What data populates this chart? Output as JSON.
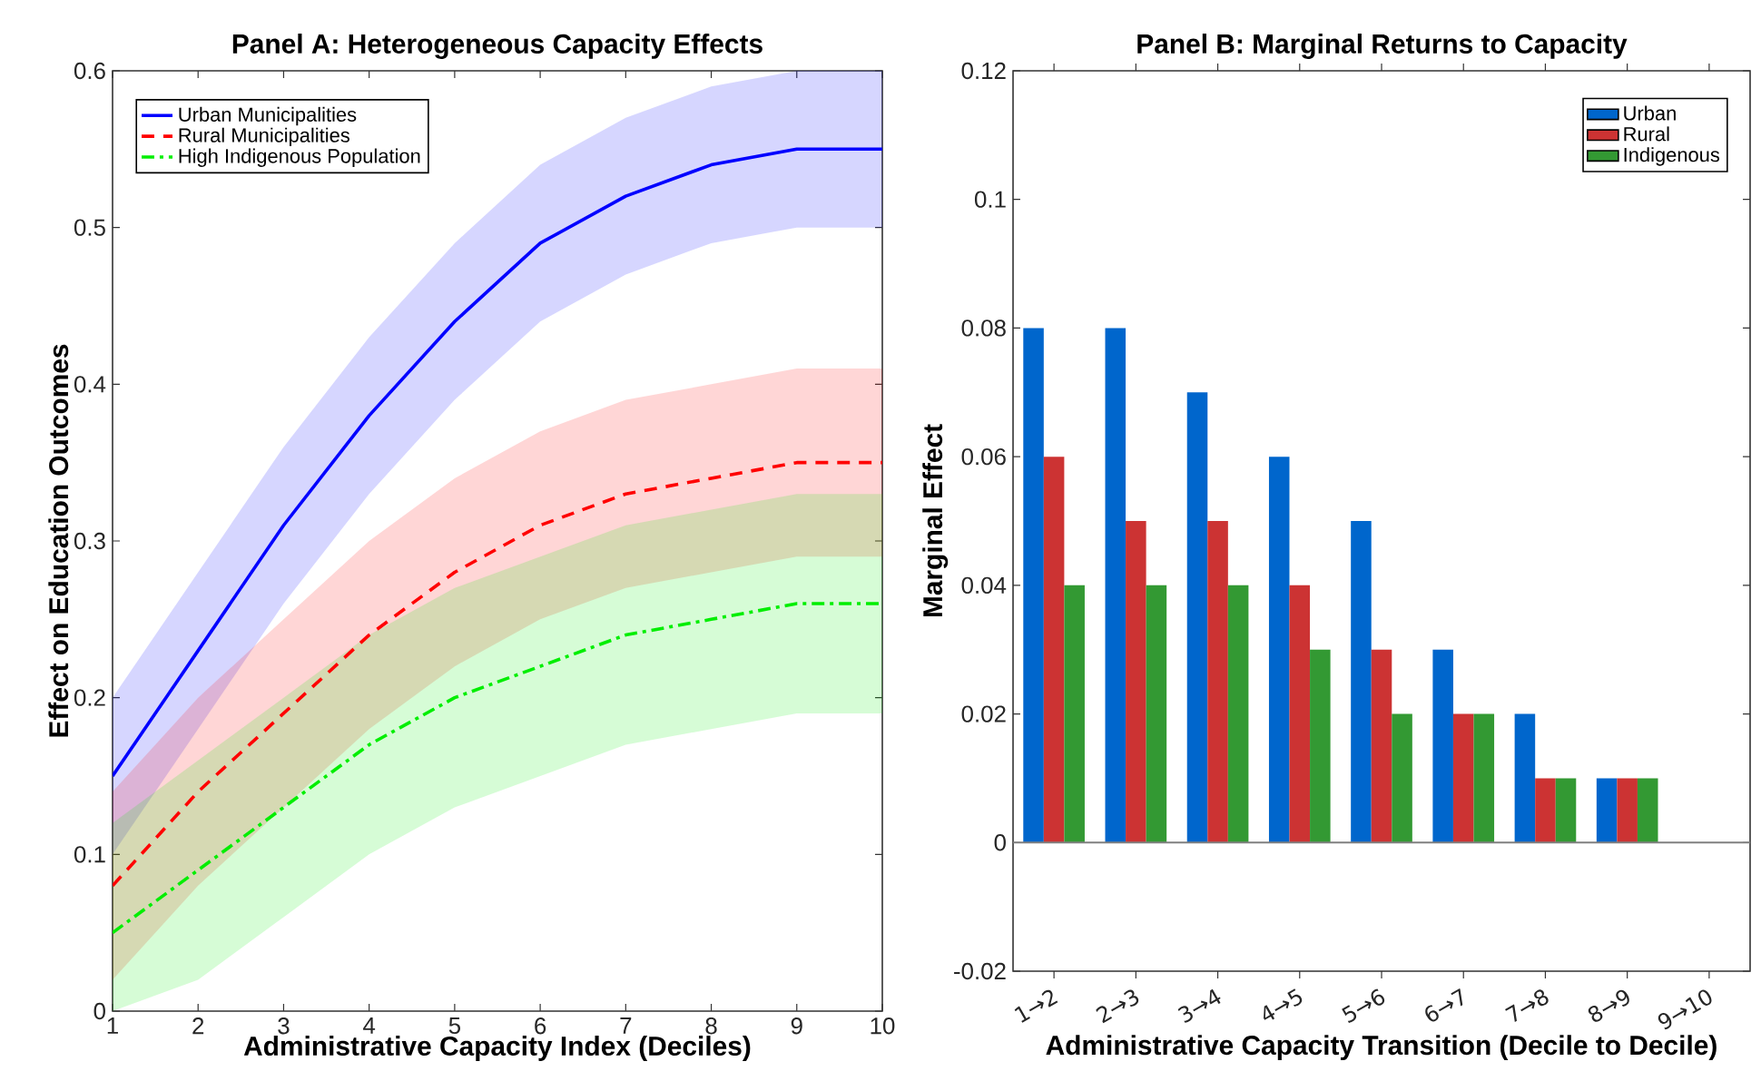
{
  "chart_data": [
    {
      "type": "line",
      "title": "Panel A: Heterogeneous Capacity Effects",
      "xlabel": "Administrative Capacity Index (Deciles)",
      "ylabel": "Effect on Education Outcomes",
      "x": [
        1,
        2,
        3,
        4,
        5,
        6,
        7,
        8,
        9,
        10
      ],
      "series": [
        {
          "name": "Urban Municipalities",
          "color": "#0000ff",
          "line_style": "solid",
          "values": [
            0.15,
            0.23,
            0.31,
            0.38,
            0.44,
            0.49,
            0.52,
            0.54,
            0.55,
            0.55
          ],
          "lower": [
            0.1,
            0.18,
            0.26,
            0.33,
            0.39,
            0.44,
            0.47,
            0.49,
            0.5,
            0.5
          ],
          "upper": [
            0.2,
            0.28,
            0.36,
            0.43,
            0.49,
            0.54,
            0.57,
            0.59,
            0.6,
            0.6
          ]
        },
        {
          "name": "Rural Municipalities",
          "color": "#ff0000",
          "line_style": "dashed",
          "values": [
            0.08,
            0.14,
            0.19,
            0.24,
            0.28,
            0.31,
            0.33,
            0.34,
            0.35,
            0.35
          ],
          "lower": [
            0.02,
            0.08,
            0.13,
            0.18,
            0.22,
            0.25,
            0.27,
            0.28,
            0.29,
            0.29
          ],
          "upper": [
            0.14,
            0.2,
            0.25,
            0.3,
            0.34,
            0.37,
            0.39,
            0.4,
            0.41,
            0.41
          ]
        },
        {
          "name": "High Indigenous Population",
          "color": "#00ee00",
          "line_style": "dashdot",
          "values": [
            0.05,
            0.09,
            0.13,
            0.17,
            0.2,
            0.22,
            0.24,
            0.25,
            0.26,
            0.26
          ],
          "lower": [
            0.0,
            0.02,
            0.06,
            0.1,
            0.13,
            0.15,
            0.17,
            0.18,
            0.19,
            0.19
          ],
          "upper": [
            0.12,
            0.16,
            0.2,
            0.24,
            0.27,
            0.29,
            0.31,
            0.32,
            0.33,
            0.33
          ]
        }
      ],
      "xlim": [
        1,
        10
      ],
      "xticks": [
        1,
        2,
        3,
        4,
        5,
        6,
        7,
        8,
        9,
        10
      ],
      "ylim": [
        0,
        0.6
      ],
      "yticks": [
        0,
        0.1,
        0.2,
        0.3,
        0.4,
        0.5,
        0.6
      ],
      "grid": false,
      "legend": "top left"
    },
    {
      "type": "bar",
      "title": "Panel B: Marginal Returns to Capacity",
      "xlabel": "Administrative Capacity Transition (Decile to Decile)",
      "ylabel": "Marginal Effect",
      "categories": [
        "1→2",
        "2→3",
        "3→4",
        "4→5",
        "5→6",
        "6→7",
        "7→8",
        "8→9",
        "9→10"
      ],
      "series": [
        {
          "name": "Urban",
          "color": "#0066cc",
          "values": [
            0.08,
            0.08,
            0.07,
            0.06,
            0.05,
            0.03,
            0.02,
            0.01,
            0
          ]
        },
        {
          "name": "Rural",
          "color": "#cc3333",
          "values": [
            0.06,
            0.05,
            0.05,
            0.04,
            0.03,
            0.02,
            0.01,
            0.01,
            0
          ]
        },
        {
          "name": "Indigenous",
          "color": "#339933",
          "values": [
            0.04,
            0.04,
            0.04,
            0.03,
            0.02,
            0.02,
            0.01,
            0.01,
            0
          ]
        }
      ],
      "ylim": [
        -0.02,
        0.12
      ],
      "yticks": [
        -0.02,
        0,
        0.02,
        0.04,
        0.06,
        0.08,
        0.1,
        0.12
      ],
      "ref_lines": [
        {
          "axis": "y",
          "value": 0,
          "color": "#808080"
        }
      ],
      "grid": false,
      "legend": "top right"
    }
  ]
}
